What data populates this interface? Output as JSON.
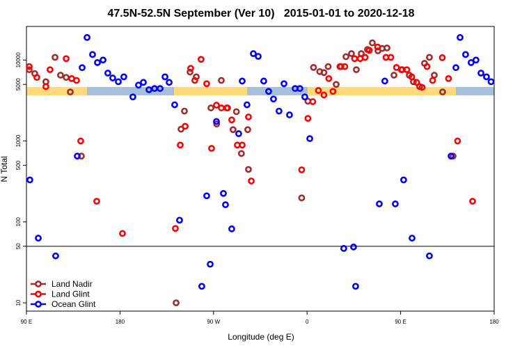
{
  "chart_data": {
    "type": "scatter",
    "title": "47.5N-52.5N September (Ver 10)   2015-01-01 to 2020-12-18",
    "x_label": "Longitude (deg E)",
    "y_label": "N Total",
    "log_y": true,
    "legend": "bottom-left",
    "reference_line": 50,
    "xlim": [
      90,
      540
    ],
    "ylim": [
      7.9,
      26000
    ],
    "xticks": [
      {
        "value": 90,
        "label": "90 E"
      },
      180,
      {
        "value": 270,
        "label": "90 W"
      },
      {
        "value": 360,
        "label": "0"
      },
      {
        "value": 450,
        "label": "90 E"
      },
      {
        "value": 540,
        "label": "180"
      }
    ],
    "yticks": [
      10,
      50,
      100,
      500,
      1000,
      5000,
      10000
    ],
    "series": [
      {
        "name": "Land Nadir",
        "color": "#a52a2a",
        "x": [
          92.7,
          98,
          108.7,
          117.5,
          122.8,
          128.2,
          132.2,
          142.9,
          247.4,
          253.4,
          242,
          238.7,
          234,
          267.5,
          273,
          277.5,
          283.5,
          288.8,
          292,
          296.8,
          303.6,
          302.9,
          354.8,
          360.8,
          366.2,
          372.2,
          376.2,
          380.3,
          388,
          392.7,
          397.4,
          402.7,
          407.4,
          412.1,
          418.1,
          422.8,
          428.2,
          432.2,
          436.9,
          443.6,
          451.6,
          458.3,
          462.3,
          468.3,
          473,
          477.7,
          482.4,
          490.4,
          500.5
        ],
        "values": [
          7600,
          6800,
          5400,
          10800,
          6500,
          6100,
          4030,
          650,
          7100,
          6200,
          2340,
          1400,
          10,
          2560,
          1620,
          5600,
          2560,
          1380,
          2300,
          700,
          445,
          1380,
          198,
          3100,
          8100,
          7200,
          7000,
          8300,
          5000,
          8300,
          11000,
          12000,
          7600,
          12000,
          13500,
          16300,
          13000,
          13900,
          14100,
          6500,
          7600,
          6500,
          5400,
          4700,
          9100,
          10800,
          6500,
          4030,
          650
        ]
      },
      {
        "name": "Land Glint",
        "color": "#ff0000",
        "x": [
          92.7,
          100,
          108.7,
          112.7,
          128.2,
          133.5,
          138.2,
          142.2,
          157.6,
          182.4,
          233.3,
          238,
          242.7,
          248,
          252,
          258,
          263.4,
          268.1,
          272.8,
          277.5,
          282.8,
          287.5,
          292.9,
          297.6,
          303.6,
          306.3,
          354.8,
          360.8,
          365.5,
          370.9,
          376.2,
          380.9,
          384.9,
          391.6,
          396.3,
          405.7,
          411.1,
          415.8,
          419.8,
          427.8,
          435.9,
          440.6,
          446,
          450.7,
          456,
          460.7,
          465.4,
          470.7,
          475.4,
          480.8,
          490.1,
          496.1,
          504.8,
          519.2
        ],
        "values": [
          8300,
          6100,
          4700,
          7600,
          10400,
          5900,
          5600,
          1000,
          180,
          72,
          83,
          890,
          1520,
          7900,
          5600,
          10200,
          5100,
          810,
          2770,
          2560,
          2560,
          1820,
          890,
          890,
          1980,
          320,
          440,
          1900,
          3060,
          4200,
          3700,
          5900,
          4100,
          8300,
          8300,
          10400,
          10400,
          10800,
          13200,
          14500,
          10800,
          10800,
          8100,
          7600,
          7600,
          6200,
          5300,
          4600,
          8300,
          5600,
          10700,
          5900,
          1000,
          180
        ]
      },
      {
        "name": "Ocean Glint",
        "color": "#0000ff",
        "x": [
          93.3,
          101.4,
          118.1,
          138.9,
          143.6,
          148.3,
          153.6,
          158.3,
          163.7,
          168.3,
          173,
          178.4,
          183.7,
          192.4,
          197.8,
          202.5,
          207.9,
          213.2,
          218.6,
          223.3,
          227.3,
          232.6,
          237.3,
          258.7,
          263.4,
          266.8,
          272.8,
          279.5,
          281.5,
          287.5,
          294.2,
          297.6,
          302.2,
          308.3,
          313,
          318.3,
          323,
          327.7,
          333,
          337.8,
          343.1,
          348.5,
          353.1,
          357.8,
          362.6,
          395.3,
          404.7,
          406.7,
          429.5,
          434.8,
          444.9,
          452.9,
          461,
          477.7,
          498.5,
          503.2,
          507.2,
          512.5,
          517.8,
          522.5,
          527.3,
          532.6,
          537
        ],
        "values": [
          330,
          63,
          38,
          650,
          8050,
          19000,
          11700,
          9300,
          10000,
          6900,
          6000,
          5400,
          6200,
          3500,
          4900,
          5300,
          4300,
          4450,
          4450,
          6200,
          5300,
          2800,
          105,
          16,
          210,
          30,
          1740,
          225,
          163,
          82,
          1230,
          5500,
          2800,
          12000,
          11100,
          5500,
          4100,
          3300,
          2340,
          5100,
          2100,
          4450,
          4450,
          3500,
          1070,
          47,
          49,
          16,
          167,
          5500,
          167,
          330,
          63,
          38,
          650,
          8050,
          19000,
          11700,
          9300,
          10000,
          6900,
          6200,
          5400
        ]
      }
    ]
  }
}
